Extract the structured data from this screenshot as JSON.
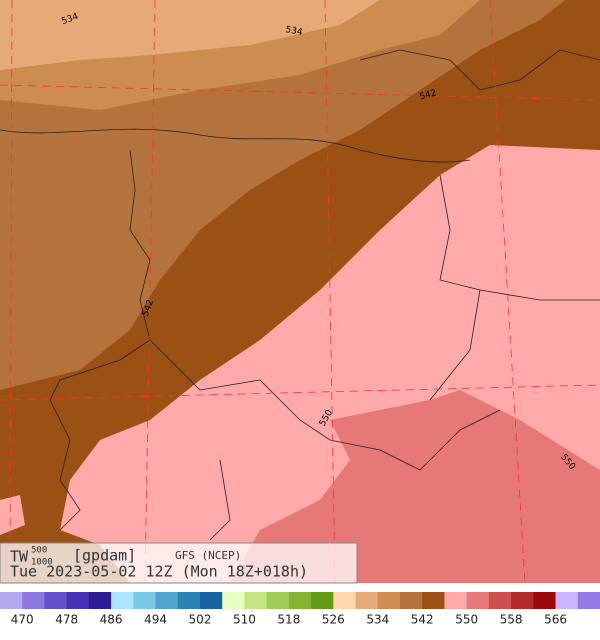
{
  "header": {
    "variable": "TW",
    "superscript": "500",
    "subscript": "1000",
    "units": "[gpdam]",
    "model": "GFS (NCEP)",
    "valid": "Tue 2023-05-02 12Z (Mon 18Z+018h)"
  },
  "contour_labels": [
    534,
    534,
    542,
    542,
    550,
    550
  ],
  "colorbar": {
    "labels": [
      470,
      478,
      486,
      494,
      502,
      510,
      518,
      526,
      534,
      542,
      550,
      558,
      566
    ],
    "colors": [
      "#b4a8f0",
      "#8c78e0",
      "#6450c8",
      "#4632b4",
      "#2d1e96",
      "#aae6ff",
      "#78c8e6",
      "#50a5cd",
      "#2d82b4",
      "#1464a0",
      "#e6ffbe",
      "#c3e682",
      "#a0cd5a",
      "#82b432",
      "#649b14",
      "#ffd7aa",
      "#e6aa78",
      "#cd8c50",
      "#b4733c",
      "#9b5014",
      "#ffaaaa",
      "#e67878",
      "#cd5050",
      "#b42828",
      "#9b0a0a",
      "#c8b4ff",
      "#9678e6"
    ]
  }
}
